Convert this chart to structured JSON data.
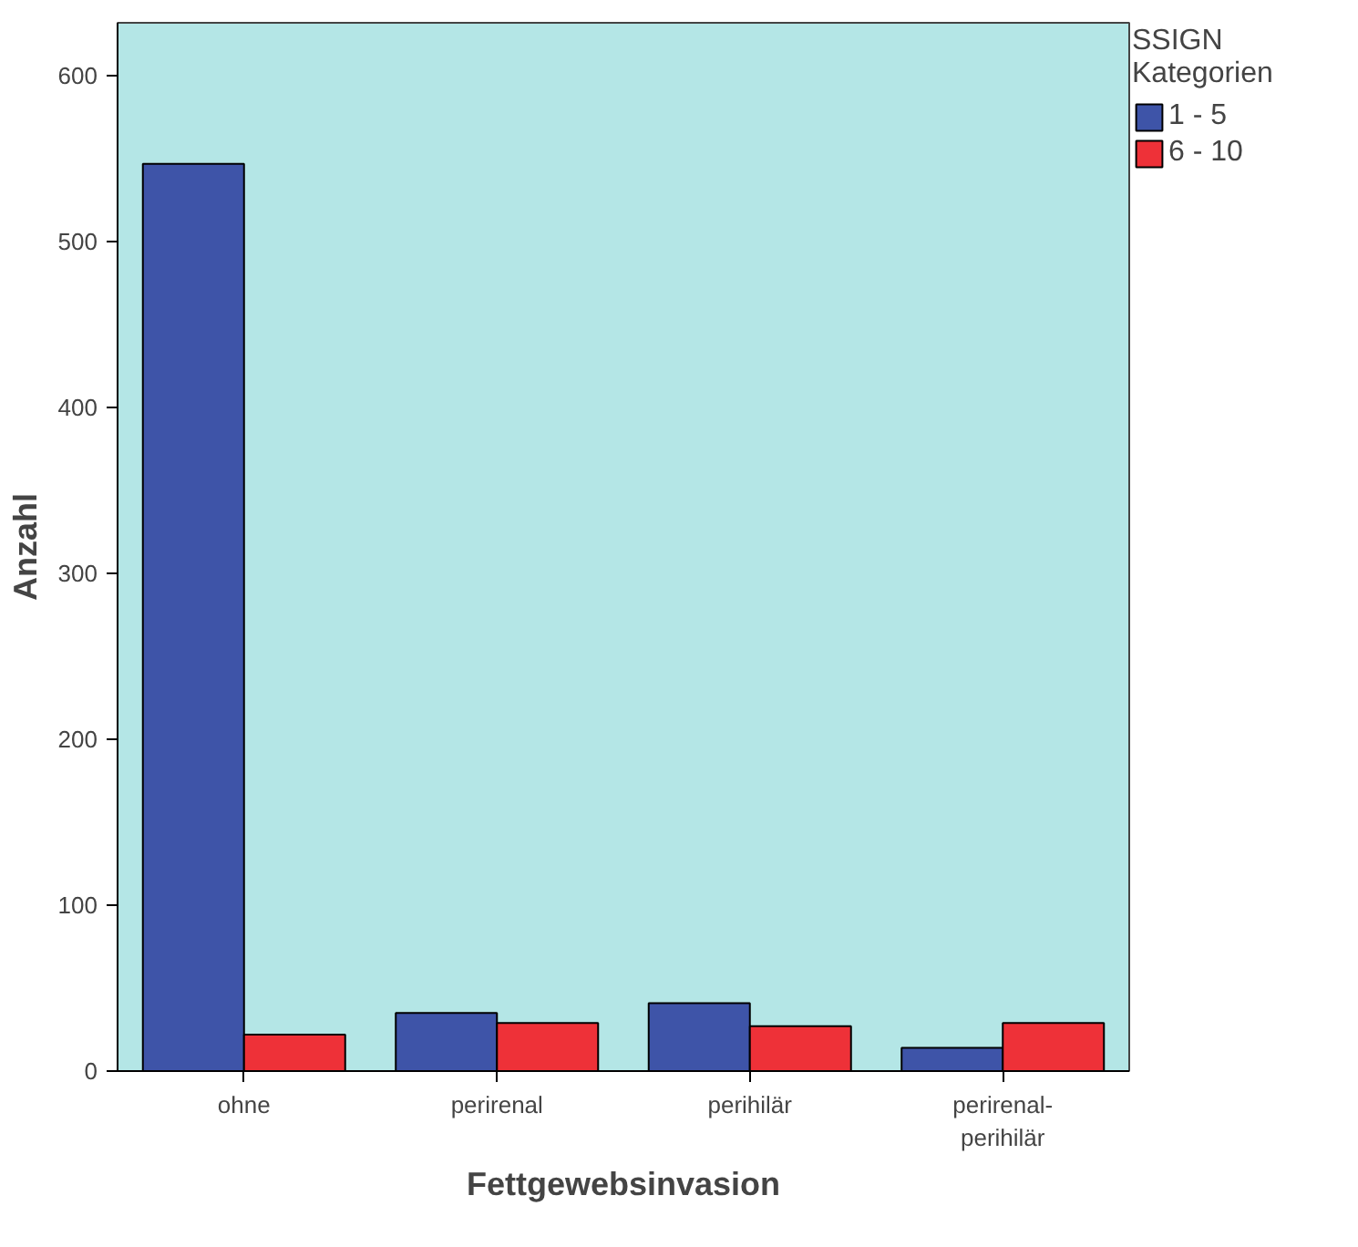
{
  "chart_data": {
    "type": "bar",
    "xlabel": "Fettgewebsinvasion",
    "ylabel": "Anzahl",
    "legend_title": "SSIGN\nKategorien",
    "categories": [
      "ohne",
      "perirenal",
      "perihilär",
      "perirenal-\nperihilär"
    ],
    "series": [
      {
        "name": "1 - 5",
        "color": "#3e54a8",
        "values": [
          547,
          35,
          41,
          14
        ]
      },
      {
        "name": "6 - 10",
        "color": "#ee3138",
        "values": [
          22,
          29,
          27,
          29
        ]
      }
    ],
    "ylim": [
      0,
      632
    ],
    "yticks": [
      0,
      100,
      200,
      300,
      400,
      500,
      600
    ],
    "grid": false,
    "legend": "top right"
  }
}
